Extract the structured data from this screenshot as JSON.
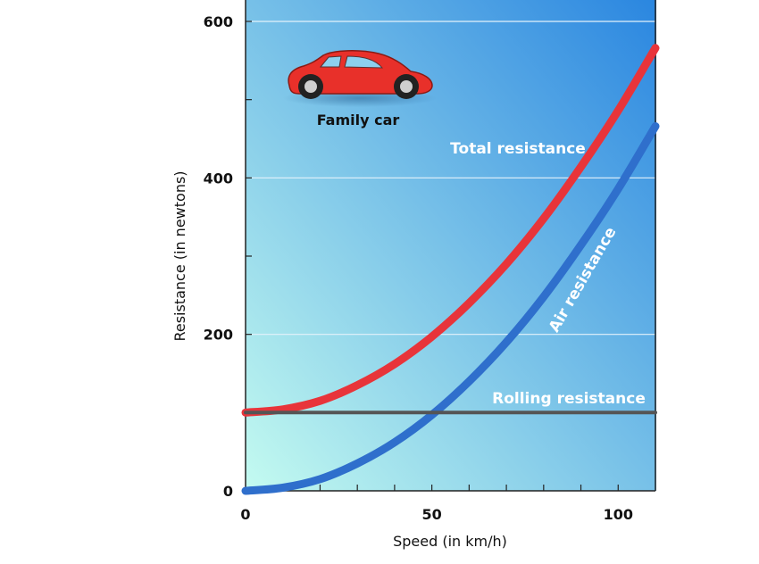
{
  "chart_data": {
    "type": "line",
    "xlabel": "Speed (in km/h)",
    "ylabel": "Resistance (in newtons)",
    "xlim": [
      0,
      110
    ],
    "ylim": [
      0,
      600
    ],
    "x_ticks": [
      0,
      50,
      100
    ],
    "y_ticks": [
      0,
      200,
      400,
      600
    ],
    "grid": true,
    "series": [
      {
        "name": "Total resistance",
        "color": "#e8343a",
        "x": [
          0,
          10,
          20,
          30,
          40,
          50,
          60,
          70,
          80,
          90,
          100,
          110
        ],
        "values": [
          100,
          104,
          115,
          135,
          162,
          197,
          240,
          290,
          348,
          414,
          486,
          566
        ]
      },
      {
        "name": "Air resistance",
        "color": "#2f6fcc",
        "x": [
          0,
          10,
          20,
          30,
          40,
          50,
          60,
          70,
          80,
          90,
          100,
          110
        ],
        "values": [
          0,
          4,
          15,
          35,
          62,
          97,
          140,
          190,
          248,
          314,
          386,
          466
        ]
      },
      {
        "name": "Rolling resistance",
        "color": "#555555",
        "x": [
          0,
          110
        ],
        "values": [
          100,
          100
        ]
      }
    ],
    "annotations": {
      "car_caption": "Family car"
    }
  },
  "colors": {
    "background_top_right": "#2a86e0",
    "background_bottom_left": "#c4fbf0",
    "car_body": "#e8302a"
  },
  "icons": {
    "car": "car-icon"
  }
}
